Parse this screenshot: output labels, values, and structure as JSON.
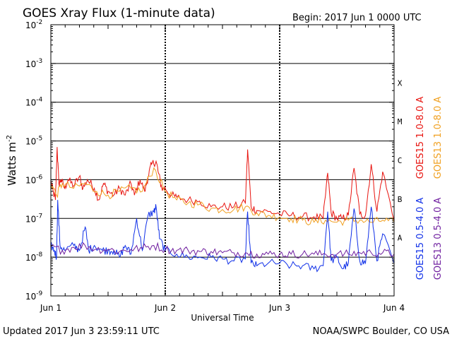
{
  "chart_data": {
    "type": "line",
    "title": "GOES Xray Flux (1-minute data)",
    "begin_label": "Begin:  2017 Jun 1 0000 UTC",
    "ylabel_base": "Watts m",
    "ylabel_exp": "-2",
    "xlabel": "Universal Time",
    "x_ticks": [
      "Jun 1",
      "Jun 2",
      "Jun 3",
      "Jun 4"
    ],
    "y_tick_exponents": [
      "-2",
      "-3",
      "-4",
      "-5",
      "-6",
      "-7",
      "-8",
      "-9"
    ],
    "y_log": true,
    "ylim": [
      1e-09,
      0.01
    ],
    "xlim_days": [
      0,
      3
    ],
    "grid": true,
    "class_labels": [
      "X",
      "M",
      "C",
      "B",
      "A"
    ],
    "class_thresholds": [
      0.0001,
      1e-05,
      1e-06,
      1e-07,
      1e-08
    ],
    "legend_placement": "right",
    "series": [
      {
        "name": "GOES15 1.0-8.0 A",
        "color": "#e8140f",
        "x": [
          0,
          0.02,
          0.04,
          0.055,
          0.07,
          0.09,
          0.12,
          0.15,
          0.2,
          0.25,
          0.28,
          0.32,
          0.38,
          0.42,
          0.46,
          0.5,
          0.55,
          0.6,
          0.65,
          0.7,
          0.73,
          0.78,
          0.82,
          0.85,
          0.88,
          0.92,
          0.94,
          0.97,
          1.0,
          1.05,
          1.1,
          1.2,
          1.3,
          1.4,
          1.5,
          1.6,
          1.7,
          1.72,
          1.75,
          1.8,
          1.9,
          2.0,
          2.1,
          2.2,
          2.3,
          2.38,
          2.42,
          2.45,
          2.5,
          2.55,
          2.6,
          2.65,
          2.7,
          2.75,
          2.8,
          2.85,
          2.9,
          3.0
        ],
        "y": [
          9e-07,
          5e-07,
          3e-07,
          7e-06,
          8e-07,
          1e-06,
          6e-07,
          1e-06,
          7e-07,
          1.2e-06,
          6e-07,
          1e-06,
          6e-07,
          3e-07,
          8e-07,
          5e-07,
          4e-07,
          6e-07,
          4e-07,
          8e-07,
          4e-07,
          1e-06,
          5e-07,
          1.2e-06,
          2.5e-06,
          3e-06,
          1.5e-06,
          6e-07,
          6e-07,
          4e-07,
          3.5e-07,
          3e-07,
          2.8e-07,
          2e-07,
          2e-07,
          2e-07,
          2.5e-07,
          6e-06,
          2e-07,
          1.6e-07,
          1.5e-07,
          1.3e-07,
          1.2e-07,
          1.1e-07,
          1.1e-07,
          1e-07,
          1.5e-06,
          1.4e-07,
          1e-07,
          1e-07,
          1.2e-07,
          2e-06,
          1.3e-07,
          1.2e-07,
          2.5e-06,
          1.5e-07,
          1.6e-06,
          9e-08
        ]
      },
      {
        "name": "GOES13 1.0-8.0 A",
        "color": "#f0a020",
        "x": [
          0,
          0.05,
          0.1,
          0.2,
          0.3,
          0.4,
          0.5,
          0.6,
          0.7,
          0.8,
          0.9,
          1.0,
          1.1,
          1.2,
          1.3,
          1.4,
          1.5,
          1.6,
          1.7,
          1.8,
          1.9,
          2.0,
          2.1,
          2.2,
          2.3,
          2.4,
          2.5,
          2.6,
          2.7,
          2.8,
          2.9,
          3.0
        ],
        "y": [
          8e-07,
          4e-07,
          8e-07,
          6e-07,
          8e-07,
          5e-07,
          4e-07,
          5e-07,
          6e-07,
          5e-07,
          2e-06,
          5e-07,
          3e-07,
          2.5e-07,
          2.3e-07,
          1.8e-07,
          1.7e-07,
          1.7e-07,
          2e-07,
          1.4e-07,
          1.2e-07,
          1.1e-07,
          1e-07,
          9e-08,
          8e-08,
          9e-08,
          8e-08,
          9e-08,
          9e-08,
          8e-08,
          9e-08,
          8e-08
        ]
      },
      {
        "name": "GOES15 0.5-4.0 A",
        "color": "#1030e8",
        "x": [
          0,
          0.03,
          0.05,
          0.06,
          0.08,
          0.12,
          0.2,
          0.25,
          0.3,
          0.33,
          0.38,
          0.45,
          0.5,
          0.55,
          0.6,
          0.65,
          0.7,
          0.75,
          0.8,
          0.85,
          0.9,
          0.92,
          0.95,
          1.0,
          1.1,
          1.2,
          1.3,
          1.4,
          1.5,
          1.6,
          1.7,
          1.72,
          1.75,
          1.8,
          1.9,
          2.0,
          2.1,
          2.2,
          2.3,
          2.38,
          2.42,
          2.45,
          2.5,
          2.55,
          2.6,
          2.65,
          2.7,
          2.75,
          2.8,
          2.85,
          2.9,
          3.0
        ],
        "y": [
          2e-08,
          1.5e-08,
          1e-08,
          3e-07,
          2e-08,
          1.5e-08,
          2e-08,
          1.5e-08,
          6e-08,
          1.5e-08,
          2e-08,
          1.5e-08,
          1.5e-08,
          1.5e-08,
          1e-08,
          2e-08,
          1.2e-08,
          1e-07,
          1.5e-08,
          1.2e-07,
          1.5e-07,
          2e-07,
          3e-08,
          1.5e-08,
          1.2e-08,
          1e-08,
          1e-08,
          1e-08,
          9e-09,
          8e-09,
          9e-09,
          1.5e-07,
          7e-09,
          6e-09,
          7e-09,
          7e-09,
          6e-09,
          6e-09,
          5e-09,
          6e-09,
          1.5e-07,
          8e-09,
          1e-08,
          5e-09,
          7e-09,
          1.8e-07,
          8e-09,
          7e-09,
          2e-07,
          8e-09,
          4e-08,
          7e-09
        ]
      },
      {
        "name": "GOES13 0.5-4.0 A",
        "color": "#7020a0",
        "x": [
          0,
          0.1,
          0.2,
          0.3,
          0.4,
          0.5,
          0.6,
          0.7,
          0.8,
          0.9,
          1.0,
          1.1,
          1.2,
          1.3,
          1.4,
          1.5,
          1.6,
          1.7,
          1.8,
          1.9,
          2.0,
          2.1,
          2.2,
          2.3,
          2.4,
          2.5,
          2.6,
          2.7,
          2.8,
          2.9,
          3.0
        ],
        "y": [
          1.8e-08,
          1.5e-08,
          1.8e-08,
          2e-08,
          1.6e-08,
          1.6e-08,
          1.4e-08,
          1.6e-08,
          1.7e-08,
          2e-08,
          1.6e-08,
          1.5e-08,
          1.5e-08,
          1.4e-08,
          1.4e-08,
          1.3e-08,
          1.3e-08,
          1.3e-08,
          1.2e-08,
          1.2e-08,
          1.2e-08,
          1.2e-08,
          1.2e-08,
          1.2e-08,
          1.2e-08,
          1.2e-08,
          1.2e-08,
          1.3e-08,
          1.3e-08,
          1.3e-08,
          1.2e-08
        ]
      }
    ]
  },
  "footer": {
    "updated": "Updated 2017 Jun  3 23:59:11 UTC",
    "source": "NOAA/SWPC Boulder, CO USA"
  }
}
